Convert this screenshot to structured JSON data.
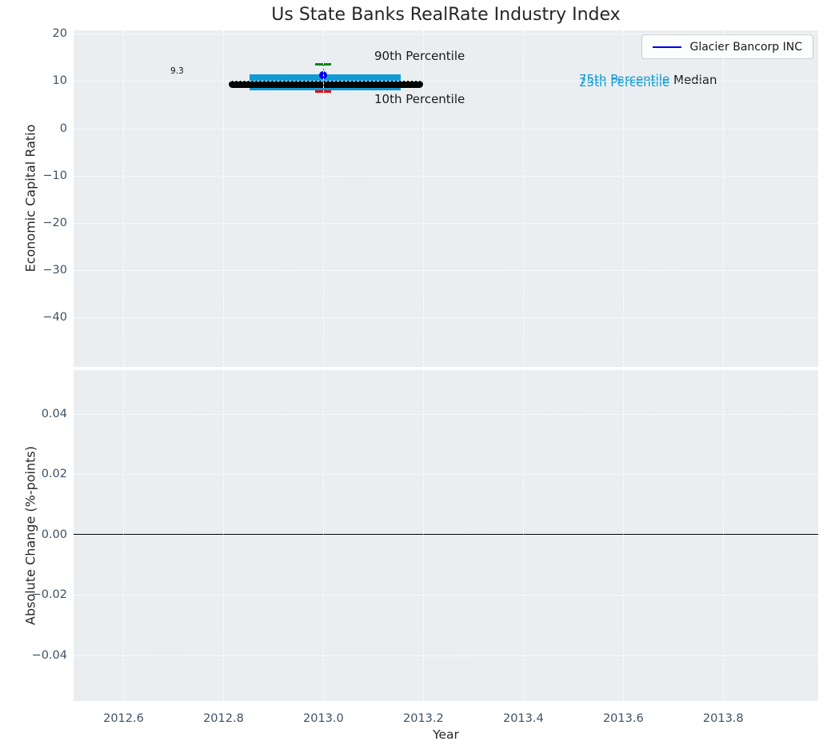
{
  "title": "Us State Banks RealRate Industry Index",
  "colors": {
    "axes_bg": "#eaeef0",
    "grid": "#ffffff",
    "tick_label": "#3d5166",
    "text": "#262626",
    "iqr_band": "#119bd5",
    "median_line": "#000000",
    "p90_cap": "#0e850e",
    "p10_cap": "#e60000",
    "company_marker": "#0000ee"
  },
  "legend": {
    "label": "Glacier Bancorp INC"
  },
  "annotations": {
    "median_value": "9.3",
    "p90_label": "90th Percentile",
    "p10_label": "10th Percentile",
    "p75_label": "75th Percentile",
    "p25_label": "25th Percentile",
    "median_label": "Median"
  },
  "chart_data": [
    {
      "type": "box-percentile",
      "title": "Us State Banks RealRate Industry Index",
      "ylabel": "Economic Capital Ratio",
      "ylim": [
        -50.4,
        20.7
      ],
      "xlim": [
        2012.5,
        2013.99
      ],
      "ytick_values": [
        20,
        10,
        0,
        -10,
        -20,
        -30,
        -40
      ],
      "ytick_labels": [
        "20",
        "10",
        "0",
        "−10",
        "−20",
        "−30",
        "−40"
      ],
      "xtick_values": [
        2012.6,
        2012.8,
        2013.0,
        2013.2,
        2013.4,
        2013.6,
        2013.8
      ],
      "xtick_labels": [
        "2012.6",
        "2012.8",
        "2013.0",
        "2013.2",
        "2013.4",
        "2013.6",
        "2013.8"
      ],
      "grid": true,
      "legend_position": "upper right",
      "x": 2013.0,
      "percentiles": {
        "p10": 7.8,
        "p25": 8.0,
        "median": 9.3,
        "p75": 11.4,
        "p90": 13.5
      },
      "median_annotation": "9.3",
      "company_point": {
        "name": "Glacier Bancorp INC",
        "x": 2013.0,
        "value": 11.3
      },
      "iqr_band_x": [
        2012.852,
        2013.155
      ],
      "median_line_x": [
        2012.81,
        2013.2
      ]
    },
    {
      "type": "line",
      "ylabel": "Absolute Change (%-points)",
      "xlabel": "Year",
      "ylim": [
        -0.0552,
        0.0545
      ],
      "xlim": [
        2012.5,
        2013.99
      ],
      "ytick_values": [
        0.04,
        0.02,
        0.0,
        -0.02,
        -0.04
      ],
      "ytick_labels": [
        "0.04",
        "0.02",
        "0.00",
        "−0.02",
        "−0.04"
      ],
      "xtick_values": [
        2012.6,
        2012.8,
        2013.0,
        2013.2,
        2013.4,
        2013.6,
        2013.8
      ],
      "xtick_labels": [
        "2012.6",
        "2012.8",
        "2013.0",
        "2013.2",
        "2013.4",
        "2013.6",
        "2013.8"
      ],
      "grid": true,
      "zero_line": 0.0,
      "series": []
    }
  ]
}
